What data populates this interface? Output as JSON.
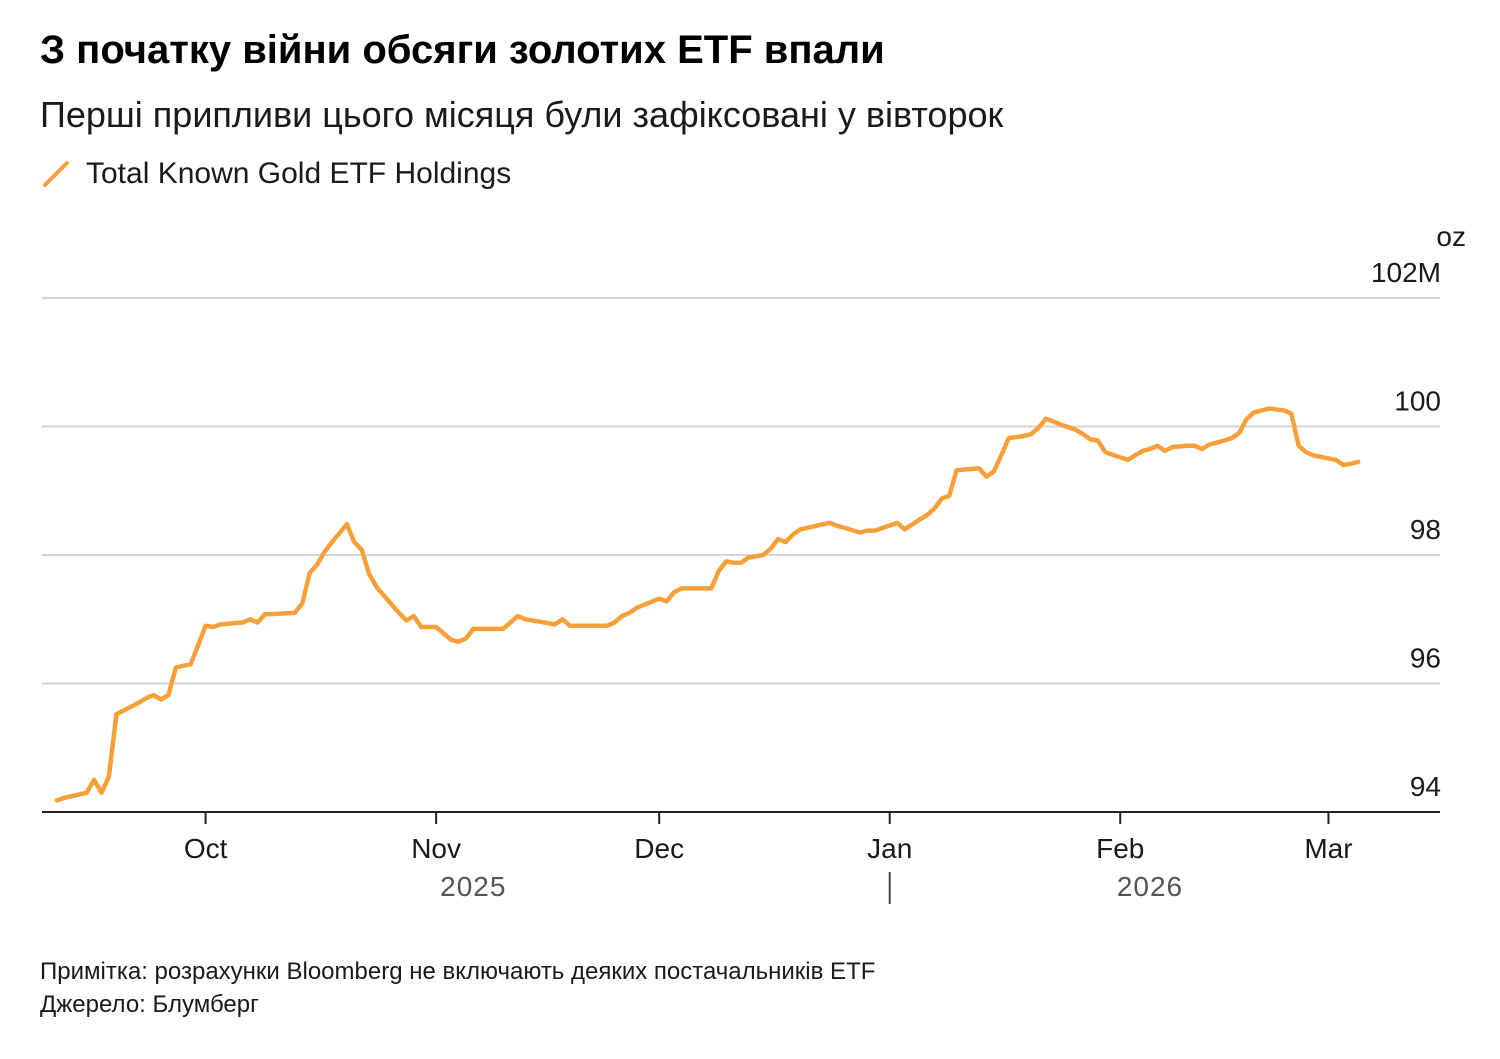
{
  "title": "З початку війни обсяги золотих ETF впали",
  "subtitle": "Перші припливи цього місяця були зафіксовані у вівторок",
  "note": "Примітка: розрахунки Bloomberg не включають деяких постачальників ETF",
  "source": "Джерело: Блумберг",
  "colors": {
    "line": "#f7a03a",
    "grid": "#d4d4d4",
    "axis": "#222222",
    "year_text": "#555555"
  },
  "chart_data": {
    "type": "line",
    "title": "З початку війни обсяги золотих ETF впали",
    "subtitle": "Перші припливи цього місяця були зафіксовані у вівторок",
    "legend_position": "top-left",
    "unit_label": "oz",
    "grid": true,
    "ylim": [
      94,
      102
    ],
    "xlim": [
      "2025-09-09",
      "2026-03-16"
    ],
    "y_ticks": [
      {
        "value": 102,
        "label": "102M"
      },
      {
        "value": 100,
        "label": "100"
      },
      {
        "value": 98,
        "label": "98"
      },
      {
        "value": 96,
        "label": "96"
      },
      {
        "value": 94,
        "label": "94"
      }
    ],
    "x_ticks": [
      {
        "date": "2025-10-01",
        "label": "Oct"
      },
      {
        "date": "2025-11-01",
        "label": "Nov"
      },
      {
        "date": "2025-12-01",
        "label": "Dec"
      },
      {
        "date": "2026-01-01",
        "label": "Jan"
      },
      {
        "date": "2026-02-01",
        "label": "Feb"
      },
      {
        "date": "2026-03-01",
        "label": "Mar"
      }
    ],
    "year_labels": [
      {
        "label": "2025",
        "center_date": "2025-11-06"
      },
      {
        "label": "2026",
        "center_date": "2026-02-05"
      }
    ],
    "year_divider_date": "2026-01-01",
    "series": [
      {
        "name": "Total Known Gold ETF Holdings",
        "points": [
          [
            "2025-09-11",
            94.18
          ],
          [
            "2025-09-12",
            94.22
          ],
          [
            "2025-09-15",
            94.3
          ],
          [
            "2025-09-16",
            94.5
          ],
          [
            "2025-09-17",
            94.3
          ],
          [
            "2025-09-18",
            94.55
          ],
          [
            "2025-09-19",
            95.52
          ],
          [
            "2025-09-22",
            95.7
          ],
          [
            "2025-09-23",
            95.77
          ],
          [
            "2025-09-24",
            95.82
          ],
          [
            "2025-09-25",
            95.75
          ],
          [
            "2025-09-26",
            95.82
          ],
          [
            "2025-09-27",
            96.25
          ],
          [
            "2025-09-29",
            96.3
          ],
          [
            "2025-09-30",
            96.6
          ],
          [
            "2025-10-01",
            96.9
          ],
          [
            "2025-10-02",
            96.88
          ],
          [
            "2025-10-03",
            96.92
          ],
          [
            "2025-10-06",
            96.95
          ],
          [
            "2025-10-07",
            97.0
          ],
          [
            "2025-10-08",
            96.95
          ],
          [
            "2025-10-09",
            97.08
          ],
          [
            "2025-10-10",
            97.08
          ],
          [
            "2025-10-13",
            97.1
          ],
          [
            "2025-10-14",
            97.25
          ],
          [
            "2025-10-15",
            97.72
          ],
          [
            "2025-10-16",
            97.85
          ],
          [
            "2025-10-17",
            98.05
          ],
          [
            "2025-10-18",
            98.2
          ],
          [
            "2025-10-20",
            98.48
          ],
          [
            "2025-10-21",
            98.2
          ],
          [
            "2025-10-22",
            98.08
          ],
          [
            "2025-10-23",
            97.7
          ],
          [
            "2025-10-24",
            97.5
          ],
          [
            "2025-10-27",
            97.1
          ],
          [
            "2025-10-28",
            96.98
          ],
          [
            "2025-10-29",
            97.05
          ],
          [
            "2025-10-30",
            96.88
          ],
          [
            "2025-10-31",
            96.88
          ],
          [
            "2025-11-01",
            96.88
          ],
          [
            "2025-11-03",
            96.68
          ],
          [
            "2025-11-04",
            96.65
          ],
          [
            "2025-11-05",
            96.7
          ],
          [
            "2025-11-06",
            96.85
          ],
          [
            "2025-11-07",
            96.85
          ],
          [
            "2025-11-10",
            96.85
          ],
          [
            "2025-11-11",
            96.95
          ],
          [
            "2025-11-12",
            97.05
          ],
          [
            "2025-11-13",
            97.0
          ],
          [
            "2025-11-14",
            96.98
          ],
          [
            "2025-11-17",
            96.92
          ],
          [
            "2025-11-18",
            97.0
          ],
          [
            "2025-11-19",
            96.9
          ],
          [
            "2025-11-20",
            96.9
          ],
          [
            "2025-11-21",
            96.9
          ],
          [
            "2025-11-24",
            96.9
          ],
          [
            "2025-11-25",
            96.95
          ],
          [
            "2025-11-26",
            97.05
          ],
          [
            "2025-11-27",
            97.1
          ],
          [
            "2025-11-28",
            97.18
          ],
          [
            "2025-12-01",
            97.32
          ],
          [
            "2025-12-02",
            97.28
          ],
          [
            "2025-12-03",
            97.42
          ],
          [
            "2025-12-04",
            97.48
          ],
          [
            "2025-12-05",
            97.48
          ],
          [
            "2025-12-08",
            97.48
          ],
          [
            "2025-12-09",
            97.75
          ],
          [
            "2025-12-10",
            97.9
          ],
          [
            "2025-12-11",
            97.88
          ],
          [
            "2025-12-12",
            97.88
          ],
          [
            "2025-12-13",
            97.96
          ],
          [
            "2025-12-15",
            98.0
          ],
          [
            "2025-12-16",
            98.1
          ],
          [
            "2025-12-17",
            98.25
          ],
          [
            "2025-12-18",
            98.2
          ],
          [
            "2025-12-19",
            98.32
          ],
          [
            "2025-12-20",
            98.4
          ],
          [
            "2025-12-22",
            98.45
          ],
          [
            "2025-12-23",
            98.48
          ],
          [
            "2025-12-24",
            98.5
          ],
          [
            "2025-12-25",
            98.45
          ],
          [
            "2025-12-26",
            98.42
          ],
          [
            "2025-12-28",
            98.35
          ],
          [
            "2025-12-29",
            98.38
          ],
          [
            "2025-12-30",
            98.38
          ],
          [
            "2025-12-31",
            98.42
          ],
          [
            "2026-01-02",
            98.5
          ],
          [
            "2026-01-03",
            98.4
          ],
          [
            "2026-01-05",
            98.55
          ],
          [
            "2026-01-06",
            98.62
          ],
          [
            "2026-01-07",
            98.72
          ],
          [
            "2026-01-08",
            98.88
          ],
          [
            "2026-01-09",
            98.92
          ],
          [
            "2026-01-10",
            99.32
          ],
          [
            "2026-01-13",
            99.35
          ],
          [
            "2026-01-14",
            99.22
          ],
          [
            "2026-01-15",
            99.3
          ],
          [
            "2026-01-16",
            99.55
          ],
          [
            "2026-01-17",
            99.82
          ],
          [
            "2026-01-19",
            99.85
          ],
          [
            "2026-01-20",
            99.88
          ],
          [
            "2026-01-21",
            99.98
          ],
          [
            "2026-01-22",
            100.12
          ],
          [
            "2026-01-23",
            100.08
          ],
          [
            "2026-01-24",
            100.03
          ],
          [
            "2026-01-26",
            99.95
          ],
          [
            "2026-01-27",
            99.88
          ],
          [
            "2026-01-28",
            99.8
          ],
          [
            "2026-01-29",
            99.78
          ],
          [
            "2026-01-30",
            99.6
          ],
          [
            "2026-02-02",
            99.48
          ],
          [
            "2026-02-03",
            99.55
          ],
          [
            "2026-02-04",
            99.62
          ],
          [
            "2026-02-05",
            99.65
          ],
          [
            "2026-02-06",
            99.7
          ],
          [
            "2026-02-07",
            99.62
          ],
          [
            "2026-02-08",
            99.68
          ],
          [
            "2026-02-10",
            99.7
          ],
          [
            "2026-02-11",
            99.7
          ],
          [
            "2026-02-12",
            99.65
          ],
          [
            "2026-02-13",
            99.72
          ],
          [
            "2026-02-14",
            99.75
          ],
          [
            "2026-02-16",
            99.82
          ],
          [
            "2026-02-17",
            99.9
          ],
          [
            "2026-02-18",
            100.12
          ],
          [
            "2026-02-19",
            100.22
          ],
          [
            "2026-02-21",
            100.28
          ],
          [
            "2026-02-23",
            100.25
          ],
          [
            "2026-02-24",
            100.2
          ],
          [
            "2026-02-25",
            99.7
          ],
          [
            "2026-02-26",
            99.6
          ],
          [
            "2026-02-27",
            99.55
          ],
          [
            "2026-03-02",
            99.48
          ],
          [
            "2026-03-03",
            99.4
          ],
          [
            "2026-03-04",
            99.42
          ],
          [
            "2026-03-05",
            99.45
          ]
        ]
      }
    ]
  }
}
